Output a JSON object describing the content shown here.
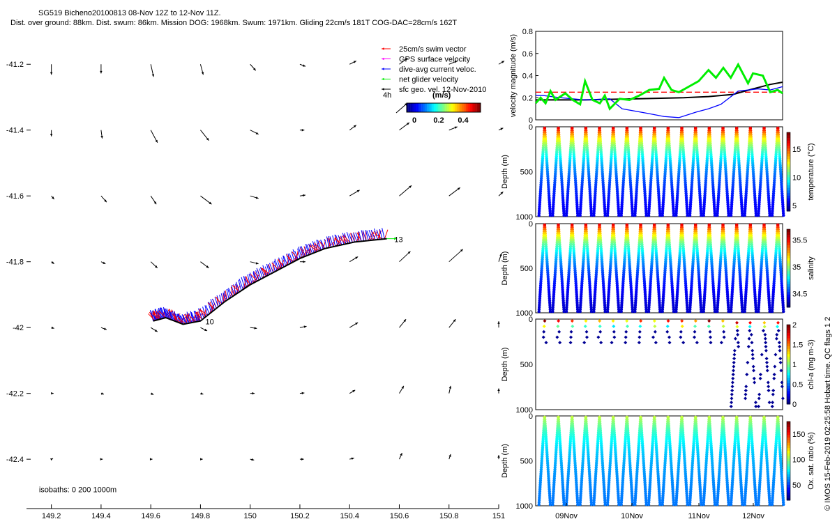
{
  "header": {
    "title": "SG519 Bicheno20100813 08-Nov 12Z to 12-Nov 11Z.",
    "subtitle": "Dist. over ground: 88km. Dist. swum: 86km. Mission DOG: 1968km. Swum: 1971km. Gliding 22cm/s 181T COG-DAC=28cm/s 162T"
  },
  "footer_note": "© IMOS 15-Feb-2019 02:25:58 Hobart time. QC flags 1  2",
  "colors": {
    "swim": "#ff0000",
    "gps": "#ff00ff",
    "dac": "#0000ff",
    "net": "#00ee00",
    "sfc": "#000000"
  },
  "chart_data": [
    {
      "type": "scatter",
      "name": "map",
      "xlim": [
        149.1,
        151
      ],
      "ylim": [
        -42.55,
        -41.1
      ],
      "xticks": [
        "149.2",
        "149.4",
        "149.6",
        "149.8",
        "150",
        "150.2",
        "150.4",
        "150.6",
        "150.8",
        "151"
      ],
      "yticks": [
        "-41.2",
        "-41.4",
        "-41.6",
        "-41.8",
        "-42",
        "-42.2",
        "-42.4"
      ],
      "legend": {
        "placement": "top-right",
        "entries": [
          {
            "label": "25cm/s swim vector",
            "color": "#ff0000"
          },
          {
            "label": "GPS surface velocity",
            "color": "#ff00ff"
          },
          {
            "label": "dive-avg current veloc.",
            "color": "#0000ff"
          },
          {
            "label": "net glider velocity",
            "color": "#00ee00"
          },
          {
            "label": "sfc geo. vel. 12-Nov-2010",
            "color": "#000000"
          }
        ],
        "colorbar_label": "4h",
        "colorbar_unit": "(m/s)",
        "colorbar_ticks": [
          "0",
          "0.2",
          "0.4"
        ]
      },
      "annotations": [
        {
          "text": "10",
          "x": 149.82,
          "y": -41.99
        },
        {
          "text": "13",
          "x": 150.58,
          "y": -41.74
        },
        {
          "text": "isobaths: 0   200  1000m",
          "x": 149.15,
          "y": -42.5
        }
      ],
      "track": [
        {
          "lon": 149.61,
          "lat": -41.98
        },
        {
          "lon": 149.66,
          "lat": -41.97
        },
        {
          "lon": 149.73,
          "lat": -41.99
        },
        {
          "lon": 149.8,
          "lat": -41.98
        },
        {
          "lon": 149.9,
          "lat": -41.92
        },
        {
          "lon": 150.0,
          "lat": -41.87
        },
        {
          "lon": 150.1,
          "lat": -41.83
        },
        {
          "lon": 150.2,
          "lat": -41.79
        },
        {
          "lon": 150.3,
          "lat": -41.76
        },
        {
          "lon": 150.42,
          "lat": -41.74
        },
        {
          "lon": 150.55,
          "lat": -41.73
        }
      ],
      "sfc_vectors_rows": [
        [
          [
            0.0,
            -0.25
          ],
          [
            0.0,
            -0.22
          ],
          [
            0.05,
            -0.3
          ],
          [
            0.05,
            -0.25
          ],
          [
            0.1,
            -0.15
          ],
          [
            0.1,
            -0.05
          ],
          [
            0.12,
            0.08
          ],
          [
            0.15,
            0.15
          ],
          [
            0.15,
            0.08
          ],
          [
            0.1,
            0.08
          ]
        ],
        [
          [
            0.0,
            -0.15
          ],
          [
            0.02,
            -0.2
          ],
          [
            0.12,
            -0.3
          ],
          [
            0.15,
            -0.25
          ],
          [
            0.15,
            -0.1
          ],
          [
            0.08,
            0.0
          ],
          [
            0.12,
            0.12
          ],
          [
            0.18,
            0.18
          ],
          [
            0.15,
            0.08
          ],
          [
            0.08,
            0.05
          ]
        ],
        [
          [
            0.05,
            -0.08
          ],
          [
            0.1,
            -0.15
          ],
          [
            0.1,
            -0.2
          ],
          [
            0.2,
            -0.2
          ],
          [
            0.15,
            -0.06
          ],
          [
            0.1,
            0.02
          ],
          [
            0.18,
            0.14
          ],
          [
            0.22,
            0.25
          ],
          [
            0.2,
            0.2
          ],
          [
            0.08,
            0.1
          ]
        ],
        [
          [
            0.05,
            -0.05
          ],
          [
            0.08,
            -0.05
          ],
          [
            0.12,
            -0.15
          ],
          [
            0.15,
            -0.15
          ],
          [
            0.15,
            -0.05
          ],
          [
            0.1,
            0.0
          ],
          [
            0.15,
            0.12
          ],
          [
            0.2,
            0.25
          ],
          [
            0.25,
            0.3
          ],
          [
            0.05,
            0.2
          ]
        ],
        [
          [
            0.05,
            -0.02
          ],
          [
            0.1,
            -0.05
          ],
          [
            0.12,
            -0.1
          ],
          [
            0.12,
            -0.08
          ],
          [
            0.12,
            -0.02
          ],
          [
            0.12,
            0.03
          ],
          [
            0.15,
            0.12
          ],
          [
            0.12,
            0.2
          ],
          [
            0.12,
            0.2
          ],
          [
            0.0,
            0.15
          ]
        ],
        [
          [
            0.04,
            0.0
          ],
          [
            0.05,
            -0.02
          ],
          [
            0.05,
            -0.03
          ],
          [
            0.05,
            -0.02
          ],
          [
            0.08,
            0.0
          ],
          [
            0.08,
            0.01
          ],
          [
            0.1,
            0.08
          ],
          [
            0.08,
            0.18
          ],
          [
            0.03,
            0.18
          ],
          [
            0.0,
            0.12
          ]
        ],
        [
          [
            0.03,
            0.02
          ],
          [
            0.03,
            0.0
          ],
          [
            0.03,
            0.0
          ],
          [
            0.04,
            0.0
          ],
          [
            0.07,
            -0.02
          ],
          [
            0.07,
            0.0
          ],
          [
            0.08,
            0.03
          ],
          [
            0.05,
            0.15
          ],
          [
            0.03,
            0.12
          ],
          [
            0.0,
            0.1
          ]
        ]
      ]
    },
    {
      "type": "line",
      "name": "velocity",
      "ylabel": "velocity magnitude (m/s)",
      "ylim": [
        0,
        0.8
      ],
      "yticks": [
        "0",
        "0.2",
        "0.4",
        "0.6",
        "0.8"
      ],
      "xlim": [
        0,
        100
      ],
      "series": [
        {
          "color": "#ff0000",
          "dashed": true,
          "x": [
            0,
            100
          ],
          "y": [
            0.25,
            0.25
          ]
        },
        {
          "color": "#000000",
          "x": [
            0,
            20,
            40,
            60,
            70,
            80,
            88,
            95,
            100
          ],
          "y": [
            0.18,
            0.18,
            0.19,
            0.2,
            0.21,
            0.23,
            0.28,
            0.32,
            0.34
          ]
        },
        {
          "color": "#0000ff",
          "x": [
            0,
            3,
            10,
            20,
            30,
            35,
            45,
            52,
            58,
            65,
            70,
            75,
            82,
            90,
            95,
            100
          ],
          "y": [
            0.22,
            0.22,
            0.2,
            0.18,
            0.19,
            0.1,
            0.06,
            0.03,
            0.02,
            0.07,
            0.1,
            0.14,
            0.26,
            0.28,
            0.27,
            0.3
          ]
        },
        {
          "color": "#00ee00",
          "x": [
            0,
            2,
            4,
            6,
            8,
            12,
            15,
            18,
            20,
            23,
            26,
            28,
            30,
            34,
            38,
            42,
            46,
            50,
            52,
            55,
            58,
            62,
            66,
            70,
            73,
            76,
            79,
            82,
            86,
            88,
            92,
            95,
            98,
            100
          ],
          "y": [
            0.15,
            0.2,
            0.15,
            0.26,
            0.18,
            0.24,
            0.18,
            0.14,
            0.35,
            0.18,
            0.15,
            0.22,
            0.1,
            0.19,
            0.18,
            0.22,
            0.27,
            0.28,
            0.38,
            0.27,
            0.25,
            0.3,
            0.35,
            0.45,
            0.38,
            0.47,
            0.38,
            0.5,
            0.33,
            0.42,
            0.4,
            0.25,
            0.27,
            0.24
          ]
        }
      ]
    },
    {
      "type": "scatter",
      "name": "temperature",
      "ylabel": "Depth (m)",
      "colorbar_label": "temperature (°C)",
      "colorbar_ticks": [
        "5",
        "10",
        "15"
      ],
      "yticks": [
        "0",
        "500",
        "1000"
      ],
      "vmin": 4,
      "vmax": 18,
      "surface": 17,
      "bottom": 5
    },
    {
      "type": "scatter",
      "name": "salinity",
      "ylabel": "Depth (m)",
      "colorbar_label": "salinity",
      "colorbar_ticks": [
        "34.5",
        "35",
        "35.5"
      ],
      "yticks": [
        "0",
        "500",
        "1000"
      ],
      "vmin": 34.25,
      "vmax": 35.7,
      "surface": 35.6,
      "bottom": 34.3
    },
    {
      "type": "scatter",
      "name": "chla",
      "ylabel": "Depth (m)",
      "colorbar_label": "chl-a (mg m-3)",
      "colorbar_ticks": [
        "0",
        "0.5",
        "1",
        "1.5",
        "2"
      ],
      "yticks": [
        "0",
        "500",
        "1000"
      ],
      "vmin": 0,
      "vmax": 2
    },
    {
      "type": "scatter",
      "name": "oxygen",
      "ylabel": "Depth (m)",
      "colorbar_label": "Ox. sat. ratio (%)",
      "colorbar_ticks": [
        "50",
        "100",
        "150"
      ],
      "yticks": [
        "0",
        "500",
        "1000"
      ],
      "vmin": 20,
      "vmax": 175,
      "surface": 110,
      "bottom": 55
    }
  ],
  "time_axis": {
    "ticks": [
      "09Nov",
      "10Nov",
      "11Nov",
      "12Nov"
    ],
    "dives": 18
  }
}
